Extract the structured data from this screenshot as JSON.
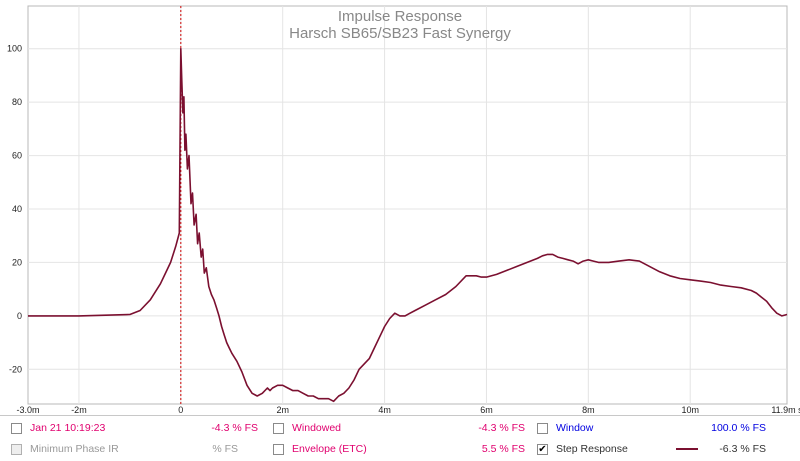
{
  "colors": {
    "trace": "#7b1030",
    "grid": "#e4e4e4",
    "marker": "#cc0000",
    "title": "#888888",
    "pink": "#e0006e",
    "blue": "#0000e0",
    "gray": "#999999",
    "dark": "#333333"
  },
  "chart_data": {
    "type": "line",
    "title": "Impulse Response",
    "subtitle": "Harsch SB65/SB23 Fast Synergy",
    "xlabel": "s",
    "ylabel": "% FS",
    "xlim": [
      -3.0,
      11.9
    ],
    "ylim": [
      -33,
      116
    ],
    "grid": true,
    "x_unit": "ms",
    "x_tick_values": [
      -3.0,
      -2,
      0,
      2,
      4,
      6,
      8,
      10,
      11.9
    ],
    "x_tick_labels": [
      "-3.0m",
      "-2m",
      "0",
      "2m",
      "4m",
      "6m",
      "8m",
      "10m",
      "11.9m s"
    ],
    "y_tick_values": [
      -20,
      0,
      20,
      40,
      60,
      80,
      100
    ],
    "y_tick_labels": [
      "-20",
      "0",
      "20",
      "40",
      "60",
      "80",
      "100"
    ],
    "marker_x": 0,
    "series": [
      {
        "name": "Step Response",
        "x": [
          -3.0,
          -2.0,
          -1.0,
          -0.8,
          -0.6,
          -0.4,
          -0.3,
          -0.2,
          -0.1,
          -0.03,
          0.0,
          0.02,
          0.04,
          0.06,
          0.08,
          0.1,
          0.13,
          0.16,
          0.2,
          0.23,
          0.26,
          0.3,
          0.33,
          0.36,
          0.4,
          0.43,
          0.46,
          0.5,
          0.55,
          0.6,
          0.65,
          0.7,
          0.75,
          0.8,
          0.85,
          0.9,
          0.95,
          1.0,
          1.1,
          1.2,
          1.3,
          1.4,
          1.5,
          1.6,
          1.7,
          1.75,
          1.8,
          1.9,
          2.0,
          2.1,
          2.2,
          2.3,
          2.4,
          2.5,
          2.6,
          2.7,
          2.8,
          2.9,
          3.0,
          3.1,
          3.2,
          3.3,
          3.4,
          3.5,
          3.6,
          3.7,
          3.8,
          3.9,
          4.0,
          4.1,
          4.2,
          4.3,
          4.4,
          4.5,
          4.6,
          4.8,
          5.0,
          5.2,
          5.4,
          5.6,
          5.8,
          5.9,
          6.0,
          6.2,
          6.4,
          6.6,
          6.8,
          7.0,
          7.1,
          7.2,
          7.3,
          7.4,
          7.5,
          7.6,
          7.7,
          7.8,
          7.9,
          8.0,
          8.1,
          8.2,
          8.4,
          8.6,
          8.8,
          9.0,
          9.2,
          9.4,
          9.6,
          9.8,
          10.0,
          10.2,
          10.4,
          10.6,
          10.8,
          11.0,
          11.2,
          11.3,
          11.4,
          11.5,
          11.6,
          11.7,
          11.8,
          11.9
        ],
        "values": [
          0,
          0,
          0.5,
          2,
          6,
          12,
          16,
          20,
          26,
          31,
          100,
          88,
          76,
          82,
          62,
          68,
          55,
          60,
          42,
          46,
          34,
          38,
          27,
          31,
          22,
          25,
          16,
          18,
          11,
          8,
          6,
          3,
          0,
          -4,
          -7,
          -10,
          -12,
          -14,
          -17,
          -21,
          -26,
          -29,
          -30,
          -29,
          -27,
          -28,
          -27,
          -26,
          -26,
          -27,
          -28,
          -28,
          -29,
          -30,
          -30,
          -31,
          -31,
          -31,
          -32,
          -30,
          -29,
          -27,
          -24,
          -20,
          -18,
          -16,
          -12,
          -8,
          -4,
          -1,
          1,
          0,
          0,
          1,
          2,
          4,
          6,
          8,
          11,
          15,
          15,
          14.5,
          14.5,
          15.5,
          17,
          18.5,
          20,
          21.5,
          22.5,
          23,
          23,
          22,
          21.5,
          21,
          20.5,
          19.5,
          20.5,
          21,
          20.5,
          20,
          20,
          20.5,
          21,
          20.5,
          18.5,
          16.5,
          15,
          14,
          13.5,
          13,
          12.5,
          11.5,
          11,
          10.5,
          9.5,
          8.5,
          7,
          5.5,
          3,
          1,
          0,
          0.5
        ]
      }
    ]
  },
  "legend": {
    "row1": [
      {
        "label": "Jan 21 10:19:23",
        "value": "-4.3 % FS",
        "checked": false,
        "disabled": false,
        "color": "#e0006e",
        "value_color": "#e0006e"
      },
      {
        "label": "Windowed",
        "value": "-4.3 % FS",
        "checked": false,
        "disabled": false,
        "color": "#e0006e",
        "value_color": "#e0006e"
      },
      {
        "label": "Window",
        "value": "100.0 % FS",
        "checked": false,
        "disabled": false,
        "color": "#0000e0",
        "value_color": "#0000e0"
      }
    ],
    "row2": [
      {
        "label": "Minimum Phase IR",
        "value": "% FS",
        "checked": false,
        "disabled": true,
        "color": "#999999",
        "value_color": "#999999"
      },
      {
        "label": "Envelope (ETC)",
        "value": "5.5 % FS",
        "checked": false,
        "disabled": false,
        "color": "#e0006e",
        "value_color": "#e0006e"
      },
      {
        "label": "Step Response",
        "value": "-6.3 % FS",
        "checked": true,
        "disabled": false,
        "color": "#333333",
        "value_color": "#333333",
        "swatch_color": "#7b1030"
      }
    ],
    "check_mark": "✔"
  }
}
